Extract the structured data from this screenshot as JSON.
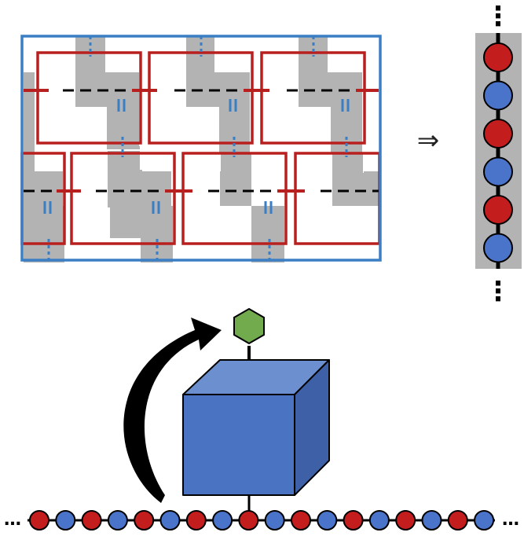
{
  "diagram": {
    "arrow_symbol": "⇒",
    "ellipsis_vertical": "⋮",
    "ellipsis_horizontal": "…",
    "colors": {
      "frame_border": "#3a7ec4",
      "red_square": "#b8201f",
      "gray_path": "#b3b3b3",
      "red_bead": "#c41d1d",
      "blue_bead": "#4a74c9",
      "cube_front": "#4a73c2",
      "cube_top": "#6c8fd0",
      "cube_side": "#3d60a6",
      "hexagon": "#72aa4e",
      "chain_line": "#000000"
    },
    "icons": {
      "implies_arrow": "double-right-arrow-icon",
      "curved_arrow": "curved-arrow-icon",
      "cube": "cube-icon",
      "hexagon": "hexagon-icon"
    },
    "vertical_chain_beads": [
      "red",
      "blue",
      "red",
      "blue",
      "red",
      "blue"
    ],
    "horizontal_chain_beads": [
      "red",
      "blue",
      "red",
      "blue",
      "red",
      "blue",
      "red",
      "blue",
      "red",
      "blue",
      "red",
      "blue",
      "red",
      "blue",
      "red",
      "blue",
      "red",
      "blue"
    ]
  }
}
